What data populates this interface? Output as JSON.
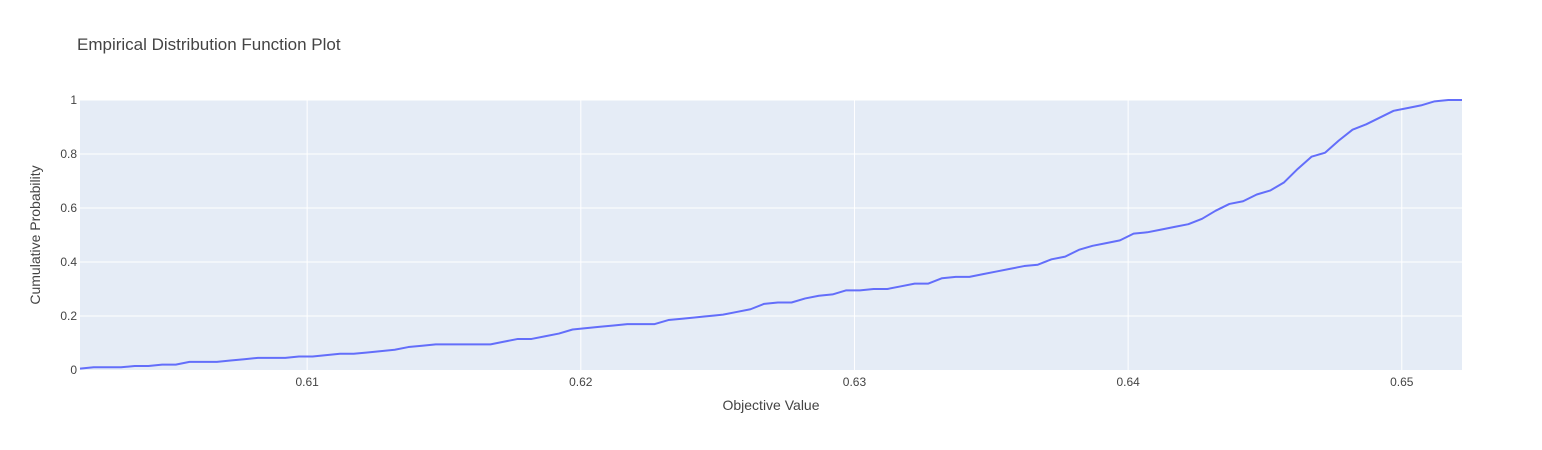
{
  "chart_data": {
    "type": "line",
    "title": "Empirical Distribution Function Plot",
    "xlabel": "Objective Value",
    "ylabel": "Cumulative Probability",
    "xlim": [
      0.6017,
      0.6522
    ],
    "ylim": [
      0,
      1
    ],
    "grid": true,
    "x_ticks": [
      0.61,
      0.62,
      0.63,
      0.64,
      0.65
    ],
    "x_tick_labels": [
      "0.61",
      "0.62",
      "0.63",
      "0.64",
      "0.65"
    ],
    "y_ticks": [
      0,
      0.2,
      0.4,
      0.6,
      0.8,
      1
    ],
    "y_tick_labels": [
      "0",
      "0.2",
      "0.4",
      "0.6",
      "0.8",
      "1"
    ],
    "series": [
      {
        "color": "#636efa",
        "x": [
          0.6017,
          0.6022,
          0.6027,
          0.6032,
          0.6037,
          0.6042,
          0.6047,
          0.6052,
          0.6057,
          0.6062,
          0.6067,
          0.6072,
          0.6077,
          0.6082,
          0.6087,
          0.6092,
          0.6097,
          0.6102,
          0.6107,
          0.6112,
          0.6117,
          0.6122,
          0.6127,
          0.6132,
          0.6137,
          0.6142,
          0.6147,
          0.6152,
          0.6157,
          0.6162,
          0.6167,
          0.6172,
          0.6177,
          0.6182,
          0.6187,
          0.6192,
          0.6197,
          0.6202,
          0.6207,
          0.6212,
          0.6217,
          0.6222,
          0.6227,
          0.6232,
          0.6237,
          0.6242,
          0.6247,
          0.6252,
          0.6257,
          0.6262,
          0.6267,
          0.6272,
          0.6277,
          0.6282,
          0.6287,
          0.6292,
          0.6297,
          0.6302,
          0.6307,
          0.6312,
          0.6317,
          0.6322,
          0.6327,
          0.6332,
          0.6337,
          0.6342,
          0.6347,
          0.6352,
          0.6357,
          0.6362,
          0.6367,
          0.6372,
          0.6377,
          0.6382,
          0.6387,
          0.6392,
          0.6397,
          0.6402,
          0.6407,
          0.6412,
          0.6417,
          0.6422,
          0.6427,
          0.6432,
          0.6437,
          0.6442,
          0.6447,
          0.6452,
          0.6457,
          0.6462,
          0.6467,
          0.6472,
          0.6477,
          0.6482,
          0.6487,
          0.6492,
          0.6497,
          0.6502,
          0.6507,
          0.6512,
          0.6517,
          0.6522
        ],
        "y": [
          0.005,
          0.01,
          0.01,
          0.01,
          0.015,
          0.015,
          0.02,
          0.02,
          0.03,
          0.03,
          0.03,
          0.035,
          0.04,
          0.045,
          0.045,
          0.045,
          0.05,
          0.05,
          0.055,
          0.06,
          0.06,
          0.065,
          0.07,
          0.075,
          0.085,
          0.09,
          0.095,
          0.095,
          0.095,
          0.095,
          0.095,
          0.105,
          0.115,
          0.115,
          0.125,
          0.135,
          0.15,
          0.155,
          0.16,
          0.165,
          0.17,
          0.17,
          0.17,
          0.185,
          0.19,
          0.195,
          0.2,
          0.205,
          0.215,
          0.225,
          0.245,
          0.25,
          0.25,
          0.265,
          0.275,
          0.28,
          0.295,
          0.295,
          0.3,
          0.3,
          0.31,
          0.32,
          0.32,
          0.34,
          0.345,
          0.345,
          0.355,
          0.365,
          0.375,
          0.385,
          0.39,
          0.41,
          0.42,
          0.445,
          0.46,
          0.47,
          0.48,
          0.505,
          0.51,
          0.52,
          0.53,
          0.54,
          0.56,
          0.59,
          0.615,
          0.625,
          0.65,
          0.665,
          0.695,
          0.745,
          0.79,
          0.805,
          0.85,
          0.89,
          0.91,
          0.935,
          0.96,
          0.97,
          0.98,
          0.995,
          1.0,
          1.0
        ]
      }
    ]
  }
}
